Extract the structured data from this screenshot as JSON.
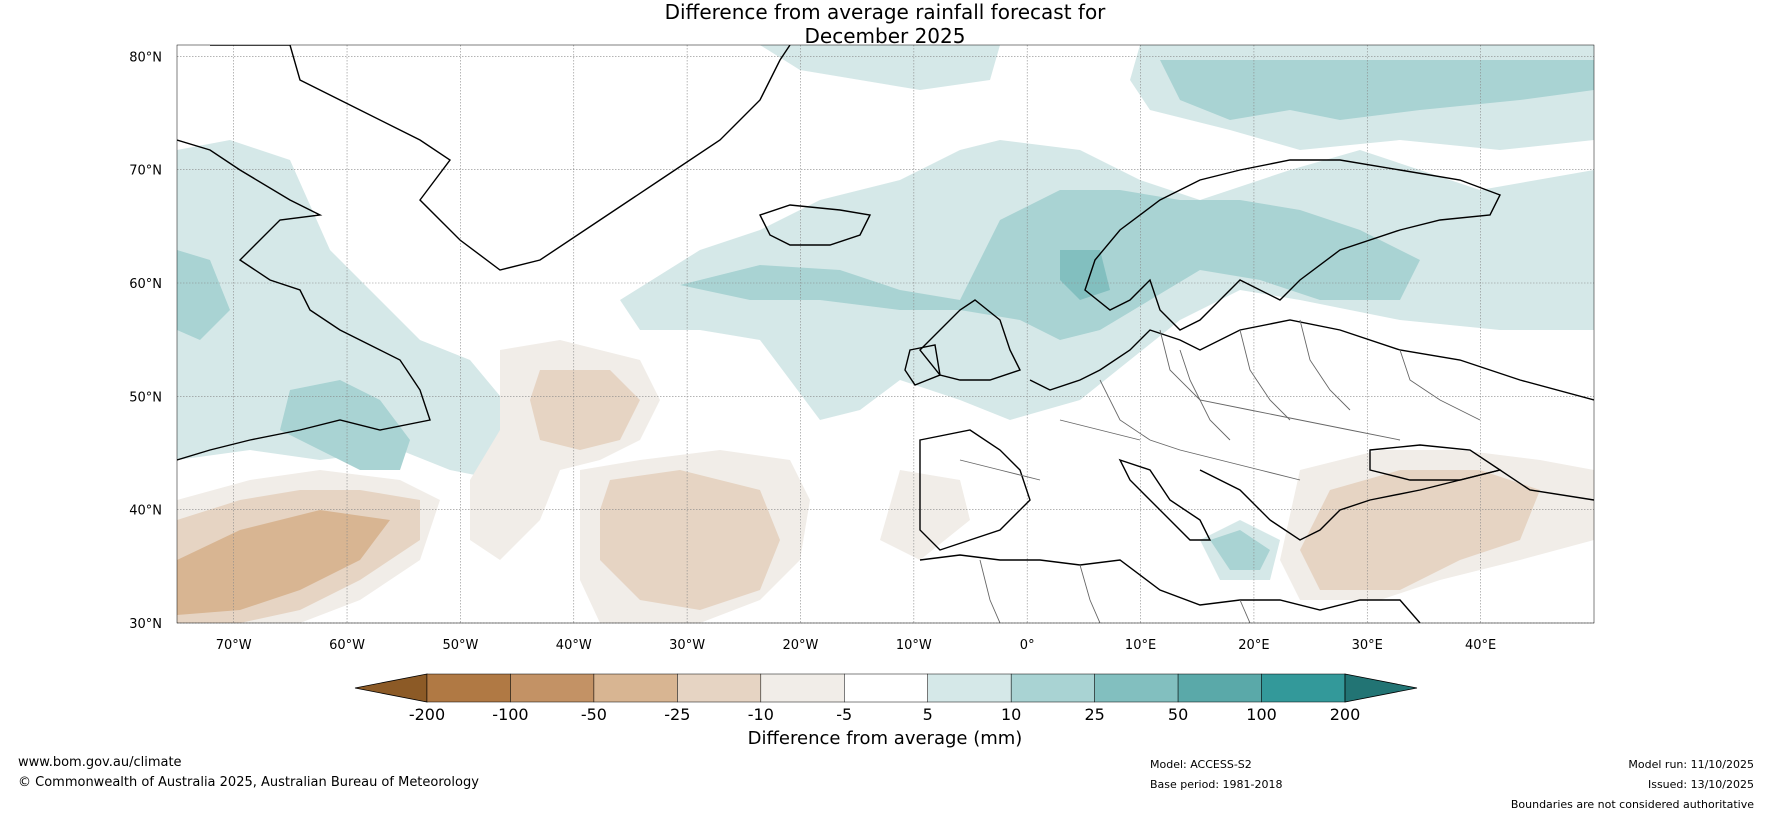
{
  "title_line1": "Difference from average rainfall forecast for",
  "title_line2": "December 2025",
  "map": {
    "lat_labels": [
      "80°N",
      "70°N",
      "60°N",
      "50°N",
      "40°N",
      "30°N"
    ],
    "lon_labels": [
      "70°W",
      "60°W",
      "50°W",
      "40°W",
      "30°W",
      "20°W",
      "10°W",
      "0°",
      "10°E",
      "20°E",
      "30°E",
      "40°E"
    ],
    "extent": {
      "lon_min": -75,
      "lon_max": 50,
      "lat_min": 30,
      "lat_max": 81
    },
    "colors": {
      "land": "#000000",
      "border": "#666666",
      "grid": "#888888"
    }
  },
  "colorbar": {
    "title": "Difference from average (mm)",
    "ticks": [
      "-200",
      "-100",
      "-50",
      "-25",
      "-10",
      "-5",
      "5",
      "10",
      "25",
      "50",
      "100",
      "200"
    ],
    "colors": [
      "#8c5a26",
      "#b07944",
      "#c39265",
      "#d8b592",
      "#e6d4c3",
      "#f1ede8",
      "#ffffff",
      "#d5e8e8",
      "#a9d3d3",
      "#82bfbf",
      "#5aa9a9",
      "#33999a",
      "#227474"
    ]
  },
  "footer": {
    "url": "www.bom.gov.au/climate",
    "copyright": "© Commonwealth of Australia 2025, Australian Bureau of Meteorology",
    "model": "Model: ACCESS-S2",
    "base_period": "Base period: 1981-2018",
    "model_run": "Model run: 11/10/2025",
    "issued": "Issued: 13/10/2025",
    "disclaimer": "Boundaries are not considered authoritative"
  }
}
